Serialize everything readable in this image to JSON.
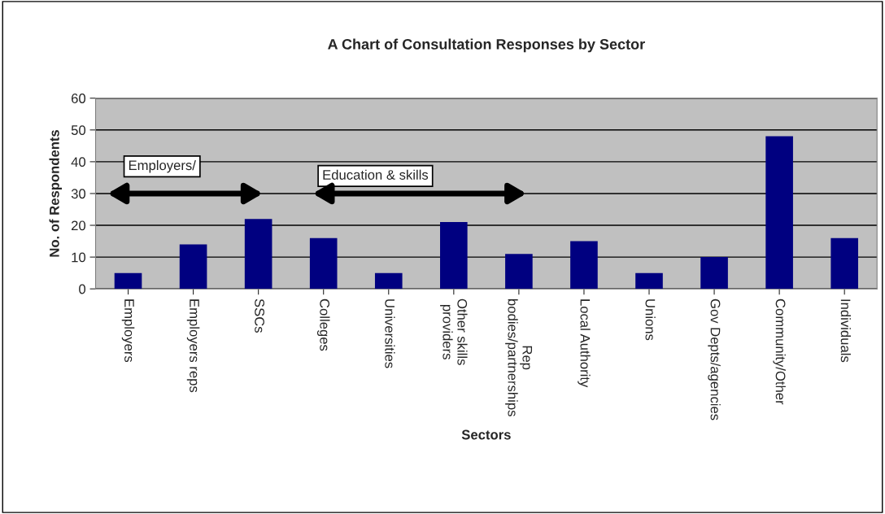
{
  "chart_data": {
    "type": "bar",
    "title": "A Chart of Consultation Responses by Sector",
    "xlabel": "Sectors",
    "ylabel": "No. of Respondents",
    "categories": [
      "Employers",
      "Employers reps",
      "SSCs",
      "Colleges",
      "Universities",
      "Other skills\nproviders",
      "Rep\nbodies/partnerships",
      "Local Authority",
      "Unions",
      "Gov Depts/agencies",
      "Community/Other",
      "Individuals"
    ],
    "values": [
      5,
      14,
      22,
      16,
      5,
      21,
      11,
      15,
      5,
      10,
      48,
      16
    ],
    "color": "#000080",
    "ylim": [
      0,
      60
    ],
    "yticks": [
      0,
      10,
      20,
      30,
      40,
      50,
      60
    ],
    "grid": "y",
    "legend": false,
    "annotations": [
      "Employers/",
      "Education & skills"
    ]
  }
}
